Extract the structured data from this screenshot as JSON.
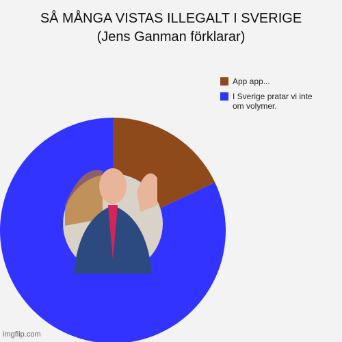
{
  "chart_data": {
    "type": "donut",
    "title": "SÅ MÅNGA VISTAS ILLEGALT I SVERIGE",
    "subtitle": "(Jens Ganman förklarar)",
    "categories": [
      "App app...",
      "I Sverige pratar vi inte om volymer."
    ],
    "values": [
      18,
      82
    ],
    "colors": [
      "#8f4a1c",
      "#3333ff"
    ],
    "legend": "top-right",
    "watermark": "imgflip.com"
  }
}
